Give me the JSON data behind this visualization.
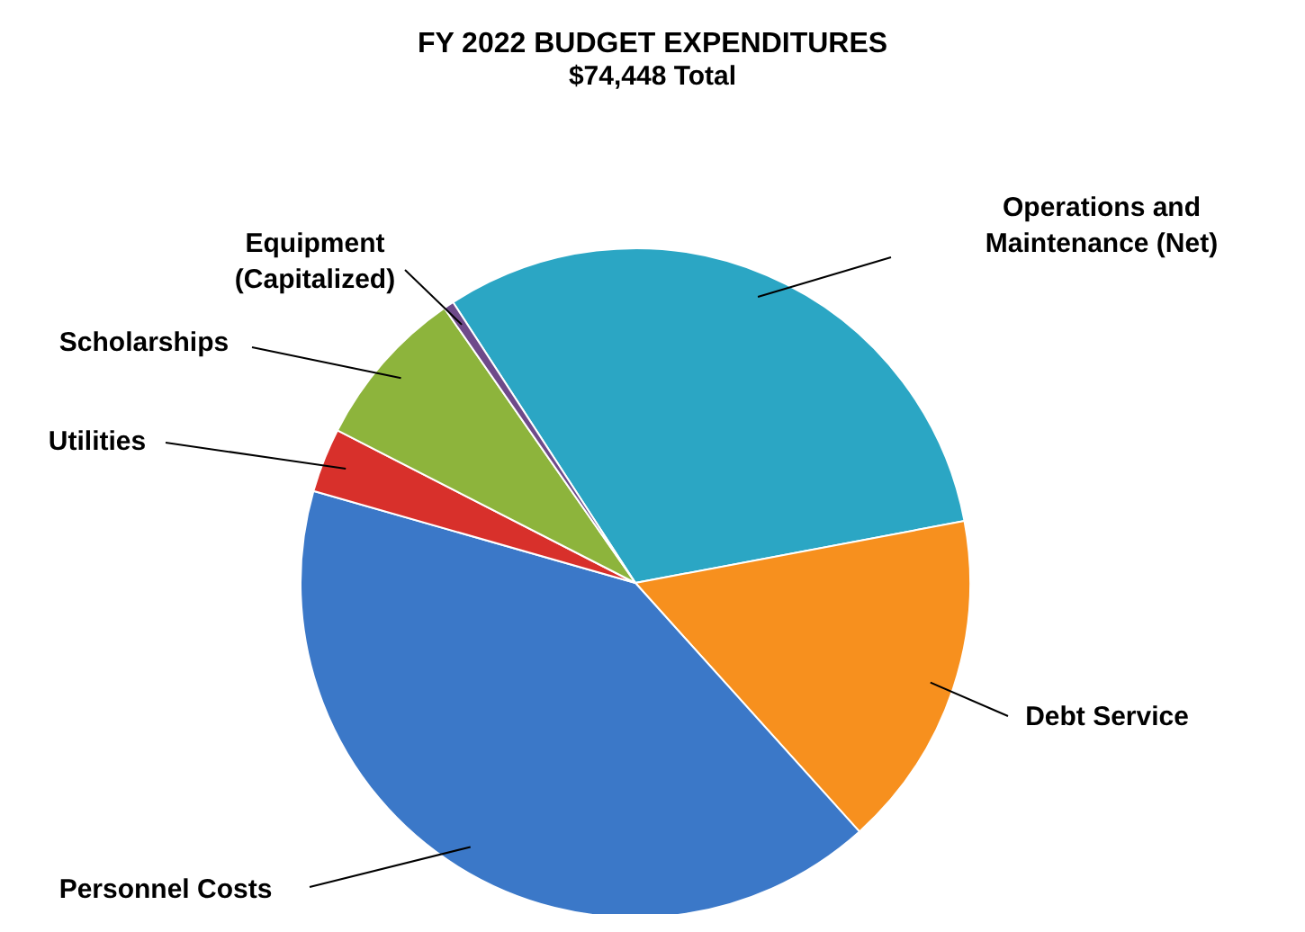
{
  "chart_data": {
    "type": "pie",
    "title": "FY 2022 BUDGET EXPENDITURES",
    "subtitle": "$74,448 Total",
    "categories": [
      "Operations and Maintenance (Net)",
      "Debt Service",
      "Personnel Costs",
      "Utilities",
      "Scholarships",
      "Equipment (Capitalized)"
    ],
    "values": [
      31.2,
      16.3,
      41.1,
      3.1,
      7.8,
      0.5
    ],
    "colors": [
      "#2ba6c4",
      "#f7901e",
      "#3b78c8",
      "#d8302b",
      "#8db43c",
      "#6e4a8a"
    ]
  }
}
